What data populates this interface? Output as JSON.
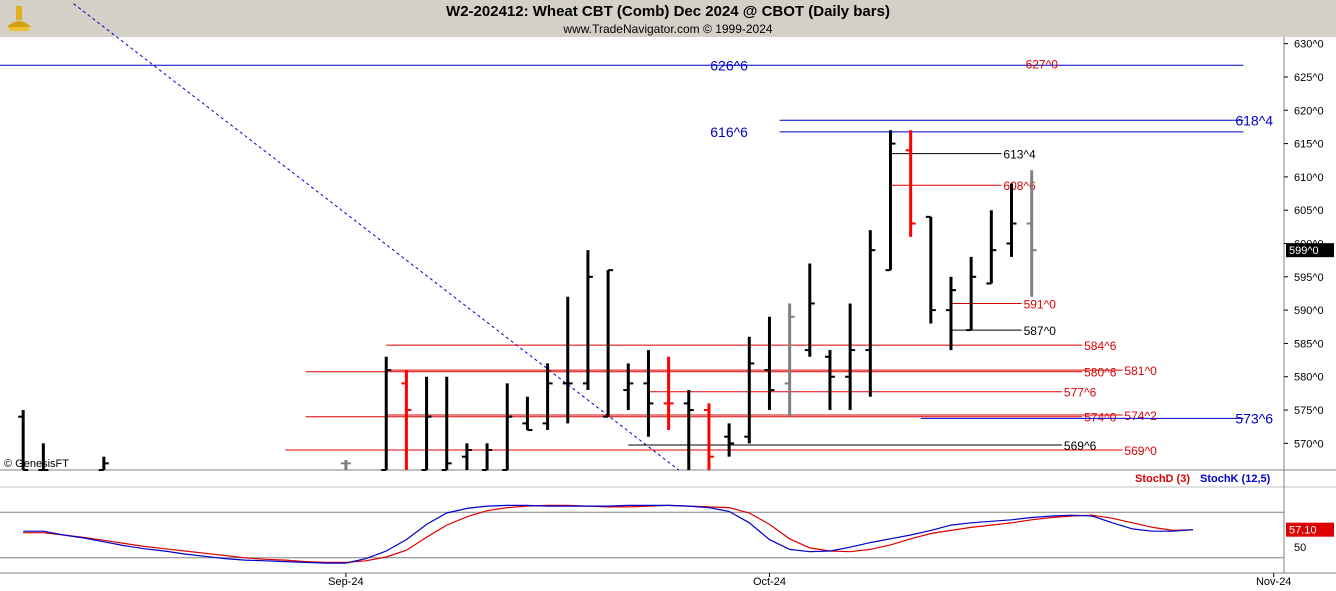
{
  "header": {
    "title": "W2-202412:  Wheat CBT (Comb) Dec 2024 @ CBOT  (Daily bars)",
    "subtitle": "www.TradeNavigator.com © 1999-2024"
  },
  "watermark": "© GenesisFT",
  "colors": {
    "up_bar": "#000000",
    "down_bar": "#ff0000",
    "neutral_bar": "#808080",
    "stochD": "#dd0000",
    "stochK": "#0000cc",
    "level_red": "#dd0000",
    "level_blue": "#0000cc",
    "trendline": "#0000cc",
    "header_bg": "#d4d0c8"
  },
  "chart_data": [
    {
      "type": "bar",
      "title": "W2-202412:  Wheat CBT (Comb) Dec 2024 @ CBOT  (Daily bars)",
      "ylim": [
        566,
        631
      ],
      "y_ticks": [
        "630^0",
        "625^0",
        "620^0",
        "615^0",
        "610^0",
        "605^0",
        "600^0",
        "595^0",
        "590^0",
        "585^0",
        "580^0",
        "575^0",
        "570^0"
      ],
      "y_tick_values": [
        630,
        625,
        620,
        615,
        610,
        605,
        600,
        595,
        590,
        585,
        580,
        575,
        570
      ],
      "x_labels": [
        "Sep-24",
        "Oct-24",
        "Nov-24"
      ],
      "x_label_index": [
        17,
        38,
        63
      ],
      "x_count": 64,
      "last_price_label": "599^0",
      "last_price": 599,
      "bars": [
        {
          "i": 1,
          "o": 574,
          "h": 575,
          "l": 566,
          "c": 566,
          "col": "up"
        },
        {
          "i": 2,
          "o": 566,
          "h": 570,
          "l": 566,
          "c": 566,
          "col": "up"
        },
        {
          "i": 5,
          "o": 566,
          "h": 568,
          "l": 566,
          "c": 567,
          "col": "up"
        },
        {
          "i": 17,
          "o": 567,
          "h": 567.5,
          "l": 566,
          "c": 567,
          "col": "neutral"
        },
        {
          "i": 19,
          "o": 566,
          "h": 583,
          "l": 566,
          "c": 581,
          "col": "up"
        },
        {
          "i": 20,
          "o": 579,
          "h": 581,
          "l": 566,
          "c": 575,
          "col": "down"
        },
        {
          "i": 21,
          "o": 566,
          "h": 580,
          "l": 566,
          "c": 574,
          "col": "up"
        },
        {
          "i": 22,
          "o": 566,
          "h": 580,
          "l": 566,
          "c": 567,
          "col": "up"
        },
        {
          "i": 23,
          "o": 568,
          "h": 570,
          "l": 566,
          "c": 569,
          "col": "up"
        },
        {
          "i": 24,
          "o": 566,
          "h": 570,
          "l": 566,
          "c": 569,
          "col": "up"
        },
        {
          "i": 25,
          "o": 566,
          "h": 579,
          "l": 566,
          "c": 574,
          "col": "up"
        },
        {
          "i": 26,
          "o": 573,
          "h": 577,
          "l": 572,
          "c": 572,
          "col": "up"
        },
        {
          "i": 27,
          "o": 573,
          "h": 582,
          "l": 572,
          "c": 579,
          "col": "up"
        },
        {
          "i": 28,
          "o": 579,
          "h": 592,
          "l": 573,
          "c": 579,
          "col": "up"
        },
        {
          "i": 29,
          "o": 579,
          "h": 599,
          "l": 578,
          "c": 595,
          "col": "up"
        },
        {
          "i": 30,
          "o": 574,
          "h": 596,
          "l": 574,
          "c": 596,
          "col": "up"
        },
        {
          "i": 31,
          "o": 578,
          "h": 582,
          "l": 575,
          "c": 579,
          "col": "up"
        },
        {
          "i": 32,
          "o": 579,
          "h": 584,
          "l": 571,
          "c": 576,
          "col": "up"
        },
        {
          "i": 33,
          "o": 576,
          "h": 583,
          "l": 572,
          "c": 576,
          "col": "down"
        },
        {
          "i": 34,
          "o": 576,
          "h": 578,
          "l": 566,
          "c": 575,
          "col": "up"
        },
        {
          "i": 35,
          "o": 575,
          "h": 576,
          "l": 566,
          "c": 568,
          "col": "down"
        },
        {
          "i": 36,
          "o": 571,
          "h": 573,
          "l": 568,
          "c": 570,
          "col": "up"
        },
        {
          "i": 37,
          "o": 571,
          "h": 586,
          "l": 570,
          "c": 582,
          "col": "up"
        },
        {
          "i": 38,
          "o": 581,
          "h": 589,
          "l": 575,
          "c": 578,
          "col": "up"
        },
        {
          "i": 39,
          "o": 579,
          "h": 591,
          "l": 574,
          "c": 589,
          "col": "neutral"
        },
        {
          "i": 40,
          "o": 584,
          "h": 597,
          "l": 583,
          "c": 591,
          "col": "up"
        },
        {
          "i": 41,
          "o": 583,
          "h": 584,
          "l": 575,
          "c": 580,
          "col": "up"
        },
        {
          "i": 42,
          "o": 580,
          "h": 591,
          "l": 575,
          "c": 584,
          "col": "up"
        },
        {
          "i": 43,
          "o": 584,
          "h": 602,
          "l": 577,
          "c": 599,
          "col": "up"
        },
        {
          "i": 44,
          "o": 596,
          "h": 617,
          "l": 596,
          "c": 615,
          "col": "up"
        },
        {
          "i": 45,
          "o": 614,
          "h": 617,
          "l": 601,
          "c": 603,
          "col": "down"
        },
        {
          "i": 46,
          "o": 604,
          "h": 604,
          "l": 588,
          "c": 590,
          "col": "up"
        },
        {
          "i": 47,
          "o": 590,
          "h": 595,
          "l": 584,
          "c": 593,
          "col": "up"
        },
        {
          "i": 48,
          "o": 587,
          "h": 598,
          "l": 587,
          "c": 595,
          "col": "up"
        },
        {
          "i": 49,
          "o": 594,
          "h": 605,
          "l": 594,
          "c": 599,
          "col": "up"
        },
        {
          "i": 50,
          "o": 600,
          "h": 609,
          "l": 598,
          "c": 603,
          "col": "up"
        },
        {
          "i": 51,
          "o": 603,
          "h": 611,
          "l": 592,
          "c": 599,
          "col": "neutral"
        }
      ]
    },
    {
      "type": "line",
      "title": "",
      "legend": [
        "StochD (3)",
        "StochK (12,5)"
      ],
      "legend_position": "top-right",
      "last_value_label": "57.10",
      "y_tick_labels": [
        "50"
      ],
      "bands": [
        80,
        20
      ],
      "ylim": [
        0,
        100
      ],
      "series": [
        {
          "name": "StochD (3)",
          "color": "#dd0000",
          "values": [
            53,
            53,
            50,
            47,
            43,
            39,
            35,
            32,
            29,
            26,
            23,
            20,
            18,
            17,
            15,
            14,
            14,
            16,
            21,
            30,
            47,
            63,
            74,
            82,
            86,
            88,
            89,
            89,
            88,
            87,
            87,
            88,
            89,
            88,
            87,
            86,
            79,
            64,
            45,
            33,
            29,
            28,
            31,
            37,
            45,
            52,
            56,
            60,
            63,
            66,
            70,
            73,
            75,
            76,
            72,
            66,
            60,
            56,
            57
          ]
        },
        {
          "name": "StochK (12,5)",
          "color": "#0000cc",
          "values": [
            55,
            55,
            50,
            46,
            41,
            36,
            32,
            29,
            25,
            22,
            19,
            17,
            16,
            15,
            14,
            13,
            13,
            19,
            29,
            44,
            64,
            79,
            85,
            88,
            89,
            89,
            88,
            88,
            88,
            88,
            89,
            89,
            89,
            88,
            86,
            81,
            66,
            44,
            31,
            28,
            29,
            34,
            40,
            45,
            50,
            56,
            63,
            66,
            68,
            70,
            73,
            75,
            76,
            75,
            66,
            58,
            55,
            55,
            57
          ]
        }
      ],
      "x_index": [
        1,
        2,
        3,
        4,
        5,
        6,
        7,
        8,
        9,
        10,
        11,
        12,
        13,
        14,
        15,
        16,
        17,
        18,
        19,
        20,
        21,
        22,
        23,
        24,
        25,
        26,
        27,
        28,
        29,
        30,
        31,
        32,
        33,
        34,
        35,
        36,
        37,
        38,
        39,
        40,
        41,
        42,
        43,
        44,
        45,
        46,
        47,
        48,
        49,
        50,
        51,
        52,
        53,
        54,
        55,
        56,
        57,
        58,
        59
      ]
    }
  ],
  "levels": [
    {
      "label": "626^6",
      "value": 626.75,
      "color": "blue",
      "x0": -1,
      "x1": 61.5,
      "label_i": 36,
      "label_side": "center"
    },
    {
      "label": "627^0",
      "value": 627,
      "color": "red",
      "x0": null,
      "x1": null,
      "label_i": 51.5,
      "label_side": "center",
      "no_line": true
    },
    {
      "label": "618^4",
      "value": 618.5,
      "color": "blue",
      "x0": 38.5,
      "x1": 61.5,
      "label_i": 61,
      "label_side": "right"
    },
    {
      "label": "616^6",
      "value": 616.75,
      "color": "blue",
      "x0": 38.5,
      "x1": 61.5,
      "label_i": 36,
      "label_side": "center"
    },
    {
      "label": "613^4",
      "value": 613.5,
      "color": "black",
      "x0": 44,
      "x1": 49.5,
      "label_i": 49.5,
      "label_side": "right"
    },
    {
      "label": "608^6",
      "value": 608.75,
      "color": "red",
      "x0": 44,
      "x1": 49.5,
      "label_i": 49.5,
      "label_side": "right"
    },
    {
      "label": "591^0",
      "value": 591,
      "color": "red",
      "x0": 47,
      "x1": 50.5,
      "label_i": 50.5,
      "label_side": "right"
    },
    {
      "label": "587^0",
      "value": 587,
      "color": "black",
      "x0": 47,
      "x1": 50.5,
      "label_i": 50.5,
      "label_side": "right"
    },
    {
      "label": "584^6",
      "value": 584.75,
      "color": "red",
      "x0": 19,
      "x1": 53.5,
      "label_i": 53.5,
      "label_side": "right"
    },
    {
      "label": "580^6",
      "value": 580.75,
      "color": "red",
      "x0": 15,
      "x1": 53.5,
      "label_i": 53.5,
      "label_side": "right"
    },
    {
      "label": "581^0",
      "value": 581,
      "color": "red",
      "x0": 19,
      "x1": 55.5,
      "label_i": 55.5,
      "label_side": "right"
    },
    {
      "label": "577^6",
      "value": 577.75,
      "color": "red",
      "x0": 32,
      "x1": 52.5,
      "label_i": 52.5,
      "label_side": "right"
    },
    {
      "label": "574^0",
      "value": 574,
      "color": "red",
      "x0": 15,
      "x1": 53.5,
      "label_i": 53.5,
      "label_side": "right"
    },
    {
      "label": "574^2",
      "value": 574.25,
      "color": "red",
      "x0": 19,
      "x1": 55.5,
      "label_i": 55.5,
      "label_side": "right"
    },
    {
      "label": "573^6",
      "value": 573.75,
      "color": "blue",
      "x0": 45.5,
      "x1": 61.5,
      "label_i": 61,
      "label_side": "right"
    },
    {
      "label": "569^6",
      "value": 569.75,
      "color": "black",
      "x0": 31,
      "x1": 52.5,
      "label_i": 52.5,
      "label_side": "right"
    },
    {
      "label": "569^0",
      "value": 569,
      "color": "red",
      "x0": 14,
      "x1": 55.5,
      "label_i": 55.5,
      "label_side": "right"
    }
  ],
  "trendline": {
    "start": [
      3.5,
      636
    ],
    "end": [
      33.5,
      566
    ],
    "color": "blue",
    "style": "dashed"
  }
}
